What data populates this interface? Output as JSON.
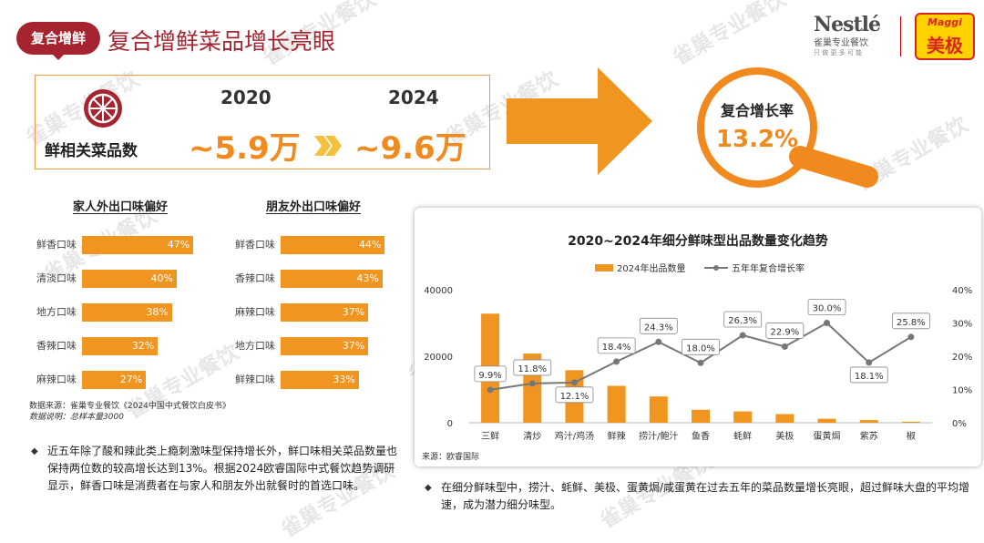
{
  "header": {
    "badge": "复合增鲜",
    "title": "复合增鲜菜品增长亮眼",
    "nestle_logo": "Nestlé",
    "nestle_sub": "雀巢专业餐饮",
    "nestle_tagline": "只 做 更 多 可 能",
    "maggi_logo": "Maggi",
    "maggi_sub": "美极"
  },
  "watermark": "雀巢专业餐饮",
  "stat": {
    "label": "鲜相关菜品数",
    "year_start": "2020",
    "year_end": "2024",
    "value_start": "~5.9万",
    "value_end": "~9.6万",
    "rate_label": "复合增长率",
    "rate_value": "13.2%"
  },
  "left_charts": [
    {
      "title": "家人外出口味偏好",
      "items": [
        {
          "label": "鲜香口味",
          "value": 47,
          "text": "47%"
        },
        {
          "label": "清淡口味",
          "value": 40,
          "text": "40%"
        },
        {
          "label": "地方口味",
          "value": 38,
          "text": "38%"
        },
        {
          "label": "香辣口味",
          "value": 32,
          "text": "32%"
        },
        {
          "label": "麻辣口味",
          "value": 27,
          "text": "27%"
        }
      ]
    },
    {
      "title": "朋友外出口味偏好",
      "items": [
        {
          "label": "鲜香口味",
          "value": 44,
          "text": "44%"
        },
        {
          "label": "香辣口味",
          "value": 43,
          "text": "43%"
        },
        {
          "label": "麻辣口味",
          "value": 37,
          "text": "37%"
        },
        {
          "label": "地方口味",
          "value": 37,
          "text": "37%"
        },
        {
          "label": "鲜辣口味",
          "value": 33,
          "text": "33%"
        }
      ]
    }
  ],
  "left_source": "数据来源：雀巢专业餐饮《2024中国中式餐饮白皮书》",
  "left_note": "数据说明：总样本量3000",
  "left_bullet": "近五年除了酸和辣此类上瘾刺激味型保持增长外，鲜口味相关菜品数量也保持两位数的较高增长达到13%。根据2024欧睿国际中式餐饮趋势调研显示，鲜香口味是消费者在与家人和朋友外出就餐时的首选口味。",
  "chart_data": {
    "type": "bar",
    "title": "2020~2024年细分鲜味型出品数量变化趋势",
    "categories": [
      "三鲜",
      "清炒",
      "鸡汁/鸡汤",
      "鲜辣",
      "捞汁/鲍汁",
      "鱼香",
      "蚝鲜",
      "美极",
      "蛋黄焗",
      "紫苏",
      "椒"
    ],
    "series": [
      {
        "name": "2024年出品数量",
        "type": "bar",
        "axis": "left",
        "color": "#f0951f",
        "values": [
          32800,
          20800,
          15800,
          11100,
          7900,
          3900,
          3400,
          2600,
          1200,
          800,
          300
        ]
      },
      {
        "name": "五年年复合增长率",
        "type": "line",
        "axis": "right",
        "color": "#777777",
        "values": [
          9.9,
          11.8,
          12.1,
          18.4,
          24.3,
          18.0,
          26.3,
          22.9,
          30.0,
          18.1,
          25.8
        ],
        "labels": [
          "9.9%",
          "11.8%",
          "12.1%",
          "18.4%",
          "24.3%",
          "18.0%",
          "26.3%",
          "22.9%",
          "30.0%",
          "18.1%",
          "25.8%"
        ]
      }
    ],
    "y_left": {
      "range": [
        0,
        40000
      ],
      "ticks": [
        "0",
        "20000",
        "40000"
      ],
      "tick_values": [
        0,
        20000,
        40000
      ]
    },
    "y_right": {
      "range": [
        0,
        40
      ],
      "ticks": [
        "0%",
        "10%",
        "20%",
        "30%",
        "40%"
      ],
      "tick_values": [
        0,
        10,
        20,
        30,
        40
      ]
    },
    "legend_position": "top-center",
    "source": "来源：欧睿国际"
  },
  "right_bullet": "在细分鲜味型中，捞汁、蚝鲜、美极、蛋黄焗/咸蛋黄在过去五年的菜品数量增长亮眼，超过鲜味大盘的平均增速，成为潜力细分味型。",
  "colors": {
    "brand_red": "#a6242f",
    "orange": "#f08a1e",
    "bar": "#f0951f",
    "line": "#777777"
  }
}
